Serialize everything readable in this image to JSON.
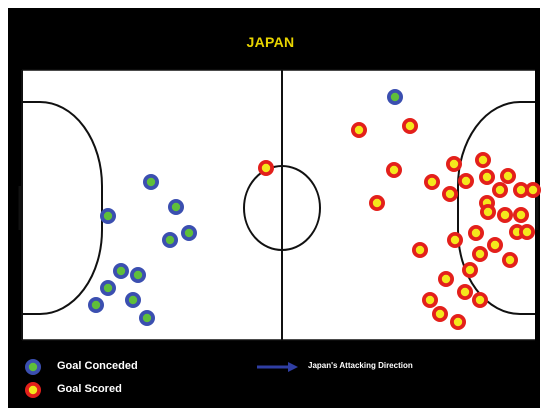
{
  "title": "JAPAN",
  "legend": {
    "conceded_label": "Goal Conceded",
    "scored_label": "Goal Scored",
    "direction_label": "Japan's Attacking Direction"
  },
  "colors": {
    "background": "#000000",
    "pitch": "#ffffff",
    "lines": "#111111",
    "title": "#e8d400",
    "conceded_outer": "#3b4fb0",
    "conceded_inner": "#5fbf3a",
    "scored_outer": "#e3201b",
    "scored_inner": "#f4e81c",
    "arrow": "#2f3ea3"
  },
  "conceded_count": 12,
  "scored_count": 34
}
